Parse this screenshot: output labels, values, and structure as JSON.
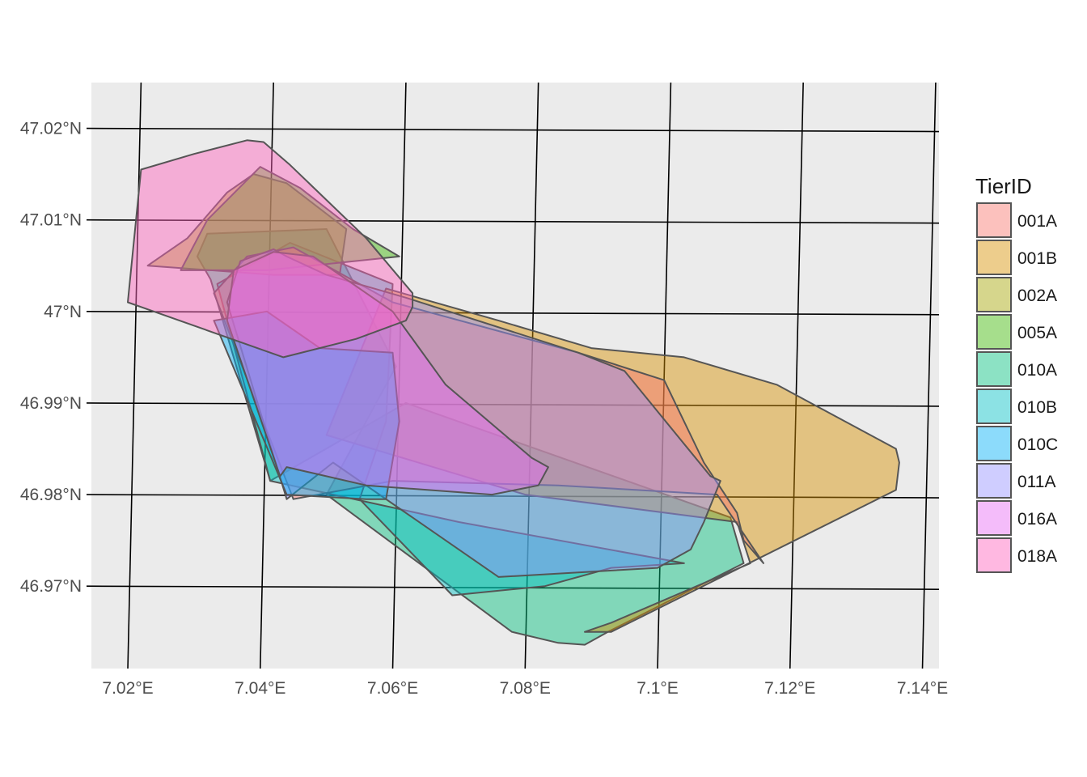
{
  "chart_data": {
    "type": "map",
    "panel_background": "#ebebeb",
    "xlim": [
      7.0145,
      7.1425
    ],
    "ylim": [
      46.961,
      47.025
    ],
    "x_ticks": [
      7.02,
      7.04,
      7.06,
      7.08,
      7.1,
      7.12,
      7.14
    ],
    "x_tick_labels": [
      "7.02°E",
      "7.04°E",
      "7.06°E",
      "7.08°E",
      "7.1°E",
      "7.12°E",
      "7.14°E"
    ],
    "y_ticks": [
      46.97,
      46.98,
      46.99,
      47.0,
      47.01,
      47.02
    ],
    "y_tick_labels": [
      "46.97°N",
      "46.98°N",
      "46.99°N",
      "47°N",
      "47.01°N",
      "47.02°N"
    ],
    "graticule_tilt": {
      "lon_per_lat": -0.0317,
      "lat_per_lon": -0.00302
    },
    "legend": {
      "title": "TierID",
      "position": "right",
      "entries": [
        {
          "label": "001A",
          "color": "#F8766D"
        },
        {
          "label": "001B",
          "color": "#D89000"
        },
        {
          "label": "002A",
          "color": "#A3A500"
        },
        {
          "label": "005A",
          "color": "#39B600"
        },
        {
          "label": "010A",
          "color": "#00BF7D"
        },
        {
          "label": "010B",
          "color": "#00BFC4"
        },
        {
          "label": "010C",
          "color": "#00B0F6"
        },
        {
          "label": "011A",
          "color": "#9590FF"
        },
        {
          "label": "016A",
          "color": "#E76BF3"
        },
        {
          "label": "018A",
          "color": "#FF62BC"
        }
      ]
    },
    "fill_opacity": 0.45,
    "outline_color": "#555555",
    "series": [
      {
        "name": "010A",
        "points": [
          [
            7.0415,
            46.9815
          ],
          [
            7.0325,
            47.0035
          ],
          [
            7.0305,
            47.006
          ],
          [
            7.032,
            47.0085
          ],
          [
            7.05,
            47.009
          ],
          [
            7.0605,
            46.994
          ],
          [
            7.05,
            46.98
          ],
          [
            7.078,
            46.965
          ],
          [
            7.085,
            46.9638
          ],
          [
            7.089,
            46.9636
          ],
          [
            7.0925,
            46.965
          ],
          [
            7.113,
            46.9725
          ],
          [
            7.111,
            46.9775
          ],
          [
            7.062,
            46.99
          ]
        ]
      },
      {
        "name": "010B",
        "points": [
          [
            7.0415,
            46.9815
          ],
          [
            7.0335,
            47.003
          ],
          [
            7.0445,
            47.0075
          ],
          [
            7.06,
            47.003
          ],
          [
            7.059,
            46.988
          ],
          [
            7.055,
            46.9795
          ],
          [
            7.069,
            46.969
          ],
          [
            7.083,
            46.97
          ],
          [
            7.093,
            46.972
          ],
          [
            7.104,
            46.9725
          ],
          [
            7.07,
            46.977
          ]
        ]
      },
      {
        "name": "002A",
        "points": [
          [
            7.023,
            47.005
          ],
          [
            7.029,
            47.008
          ],
          [
            7.035,
            47.013
          ],
          [
            7.039,
            47.015
          ],
          [
            7.044,
            47.014
          ],
          [
            7.053,
            47.009
          ],
          [
            7.052,
            47.004
          ],
          [
            7.042,
            47.004
          ]
        ]
      },
      {
        "name": "005A",
        "points": [
          [
            7.028,
            47.0045
          ],
          [
            7.032,
            47.01
          ],
          [
            7.04,
            47.0158
          ],
          [
            7.046,
            47.0135
          ],
          [
            7.054,
            47.009
          ],
          [
            7.061,
            47.006
          ],
          [
            7.041,
            47.0045
          ]
        ]
      },
      {
        "name": "001B",
        "points": [
          [
            7.059,
            47.0025
          ],
          [
            7.076,
            46.999
          ],
          [
            7.09,
            46.996
          ],
          [
            7.104,
            46.995
          ],
          [
            7.118,
            46.992
          ],
          [
            7.136,
            46.985
          ],
          [
            7.1365,
            46.9835
          ],
          [
            7.136,
            46.9805
          ],
          [
            7.093,
            46.965
          ],
          [
            7.089,
            46.965
          ],
          [
            7.093,
            46.966
          ],
          [
            7.114,
            46.9725
          ],
          [
            7.112,
            46.977
          ],
          [
            7.08,
            46.98
          ],
          [
            7.05,
            46.9865
          ]
        ]
      },
      {
        "name": "001A",
        "points": [
          [
            7.045,
            46.9795
          ],
          [
            7.033,
            47.002
          ],
          [
            7.038,
            47.006
          ],
          [
            7.045,
            47.007
          ],
          [
            7.06,
            47.001
          ],
          [
            7.088,
            46.9955
          ],
          [
            7.101,
            46.9925
          ],
          [
            7.107,
            46.9835
          ],
          [
            7.112,
            46.978
          ],
          [
            7.113,
            46.975
          ],
          [
            7.116,
            46.9725
          ],
          [
            7.109,
            46.98
          ],
          [
            7.085,
            46.981
          ],
          [
            7.06,
            46.9815
          ]
        ]
      },
      {
        "name": "011A",
        "points": [
          [
            7.044,
            46.9795
          ],
          [
            7.035,
            47.001
          ],
          [
            7.037,
            47.0055
          ],
          [
            7.042,
            47.0068
          ],
          [
            7.044,
            47.006
          ],
          [
            7.05,
            47.004
          ],
          [
            7.062,
            47.0015
          ],
          [
            7.088,
            46.9955
          ],
          [
            7.095,
            46.9935
          ],
          [
            7.108,
            46.982
          ],
          [
            7.1095,
            46.9815
          ],
          [
            7.107,
            46.977
          ],
          [
            7.105,
            46.974
          ],
          [
            7.1,
            46.972
          ],
          [
            7.076,
            46.971
          ],
          [
            7.051,
            46.9835
          ]
        ]
      },
      {
        "name": "010C",
        "points": [
          [
            7.044,
            46.98
          ],
          [
            7.033,
            46.999
          ],
          [
            7.041,
            47.0
          ],
          [
            7.049,
            46.996
          ],
          [
            7.06,
            46.9955
          ],
          [
            7.061,
            46.988
          ],
          [
            7.059,
            46.9795
          ],
          [
            7.056,
            46.9795
          ]
        ]
      },
      {
        "name": "016A",
        "points": [
          [
            7.043,
            46.982
          ],
          [
            7.035,
            46.999
          ],
          [
            7.036,
            47.0045
          ],
          [
            7.042,
            47.0065
          ],
          [
            7.048,
            47.006
          ],
          [
            7.06,
            47.0
          ],
          [
            7.068,
            46.992
          ],
          [
            7.081,
            46.984
          ],
          [
            7.0835,
            46.983
          ],
          [
            7.082,
            46.981
          ],
          [
            7.075,
            46.98
          ],
          [
            7.056,
            46.981
          ],
          [
            7.044,
            46.983
          ]
        ]
      },
      {
        "name": "018A",
        "points": [
          [
            7.02,
            47.001
          ],
          [
            7.022,
            47.0155
          ],
          [
            7.03,
            47.0172
          ],
          [
            7.038,
            47.0187
          ],
          [
            7.0405,
            47.0185
          ],
          [
            7.0445,
            47.016
          ],
          [
            7.056,
            47.008
          ],
          [
            7.063,
            47.002
          ],
          [
            7.063,
            47.0005
          ],
          [
            7.062,
            46.999
          ],
          [
            7.0545,
            46.997
          ],
          [
            7.0435,
            46.995
          ],
          [
            7.02,
            47.001
          ]
        ]
      }
    ]
  }
}
